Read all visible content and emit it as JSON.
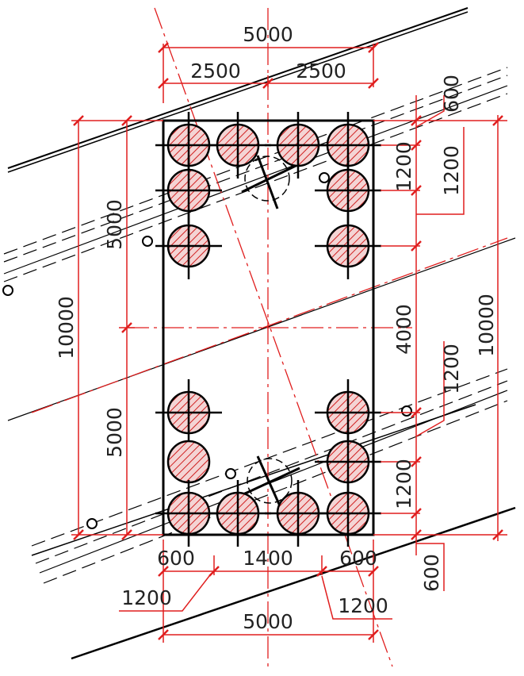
{
  "colors": {
    "dimension": "#e01e1e",
    "outline": "#000000",
    "pile_fill": "#f4d4d4",
    "hatch": "#d02020"
  },
  "pile_icon": "hatched-circle-with-crosshair",
  "labels": {
    "top_total": "5000",
    "top_left_half": "2500",
    "top_right_half": "2500",
    "left_total": "10000",
    "left_upper_half": "5000",
    "left_lower_half": "5000",
    "right_total": "10000",
    "right_middle": "4000",
    "right_spacing_1": "1200",
    "right_spacing_2": "1200",
    "right_spacing_3": "1200",
    "right_spacing_4": "1200",
    "right_top_offset": "600",
    "right_bottom_offset": "600",
    "bottom_left_edge": "600",
    "bottom_middle": "1400",
    "bottom_right_edge": "600",
    "bottom_left_spacing": "1200",
    "bottom_right_spacing": "1200",
    "bottom_total": "5000"
  }
}
